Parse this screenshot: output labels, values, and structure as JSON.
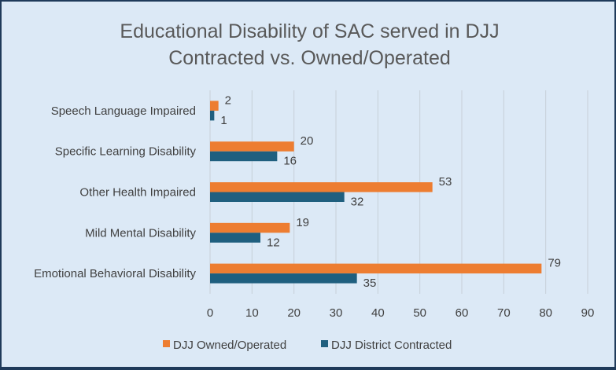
{
  "chart_data": {
    "type": "bar",
    "orientation": "horizontal",
    "title": "Educational Disability of SAC served in DJJ Contracted vs. Owned/Operated",
    "title_lines": [
      "Educational Disability of SAC served in DJJ",
      "Contracted vs. Owned/Operated"
    ],
    "categories": [
      "Speech Language Impaired",
      "Specific Learning Disability",
      "Other Health Impaired",
      "Mild Mental Disability",
      "Emotional Behavioral Disability"
    ],
    "series": [
      {
        "name": "DJJ Owned/Operated",
        "color": "#ed7d31",
        "values": [
          2,
          20,
          53,
          19,
          79
        ]
      },
      {
        "name": "DJJ District Contracted",
        "color": "#1f5f7f",
        "values": [
          1,
          16,
          32,
          12,
          35
        ]
      }
    ],
    "xlim": [
      0,
      90
    ],
    "xticks": [
      0,
      10,
      20,
      30,
      40,
      50,
      60,
      70,
      80,
      90
    ],
    "grid": true,
    "legend_position": "bottom",
    "xlabel": "",
    "ylabel": ""
  }
}
